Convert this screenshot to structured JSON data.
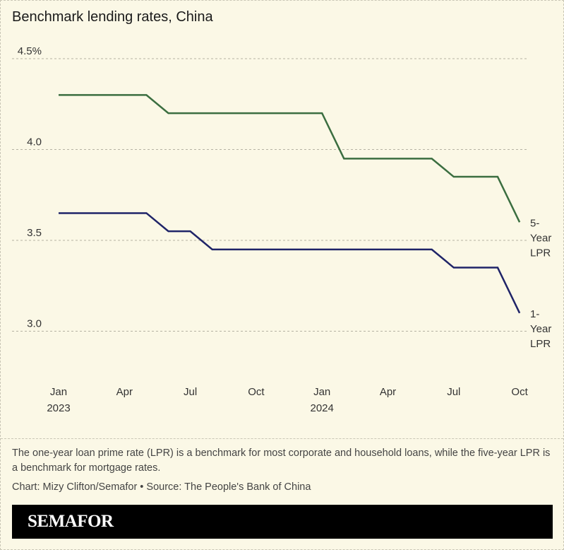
{
  "chart_data": {
    "type": "line",
    "title": "Benchmark lending rates, China",
    "x": [
      "2023-01",
      "2023-02",
      "2023-03",
      "2023-04",
      "2023-05",
      "2023-06",
      "2023-07",
      "2023-08",
      "2023-09",
      "2023-10",
      "2023-11",
      "2023-12",
      "2024-01",
      "2024-02",
      "2024-03",
      "2024-04",
      "2024-05",
      "2024-06",
      "2024-07",
      "2024-08",
      "2024-09",
      "2024-10"
    ],
    "series": [
      {
        "name": "5-Year LPR",
        "color": "#3b6e40",
        "values": [
          4.3,
          4.3,
          4.3,
          4.3,
          4.3,
          4.2,
          4.2,
          4.2,
          4.2,
          4.2,
          4.2,
          4.2,
          4.2,
          3.95,
          3.95,
          3.95,
          3.95,
          3.95,
          3.85,
          3.85,
          3.85,
          3.6
        ]
      },
      {
        "name": "1-Year LPR",
        "color": "#1f2468",
        "values": [
          3.65,
          3.65,
          3.65,
          3.65,
          3.65,
          3.55,
          3.55,
          3.45,
          3.45,
          3.45,
          3.45,
          3.45,
          3.45,
          3.45,
          3.45,
          3.45,
          3.45,
          3.45,
          3.35,
          3.35,
          3.35,
          3.1
        ]
      }
    ],
    "series_labels": [
      [
        "5-",
        "Year",
        "LPR"
      ],
      [
        "1-",
        "Year",
        "LPR"
      ]
    ],
    "ylim": [
      3.0,
      4.5
    ],
    "yticks": [
      {
        "value": 4.5,
        "label": "4.5%"
      },
      {
        "value": 4.0,
        "label": "4.0"
      },
      {
        "value": 3.5,
        "label": "3.5"
      },
      {
        "value": 3.0,
        "label": "3.0"
      }
    ],
    "xticks": [
      {
        "index": 0,
        "label": "Jan",
        "sub": "2023"
      },
      {
        "index": 3,
        "label": "Apr",
        "sub": ""
      },
      {
        "index": 6,
        "label": "Jul",
        "sub": ""
      },
      {
        "index": 9,
        "label": "Oct",
        "sub": ""
      },
      {
        "index": 12,
        "label": "Jan",
        "sub": "2024"
      },
      {
        "index": 15,
        "label": "Apr",
        "sub": ""
      },
      {
        "index": 18,
        "label": "Jul",
        "sub": ""
      },
      {
        "index": 21,
        "label": "Oct",
        "sub": ""
      }
    ],
    "grid": true,
    "legend": "inline-right"
  },
  "note": "The one-year loan prime rate (LPR) is a benchmark for most corporate and household loans, while the five-year LPR is a benchmark for mortgage rates.",
  "credit": "Chart: Mizy Clifton/Semafor • Source: The People's Bank of China",
  "brand": "SEMAFOR"
}
